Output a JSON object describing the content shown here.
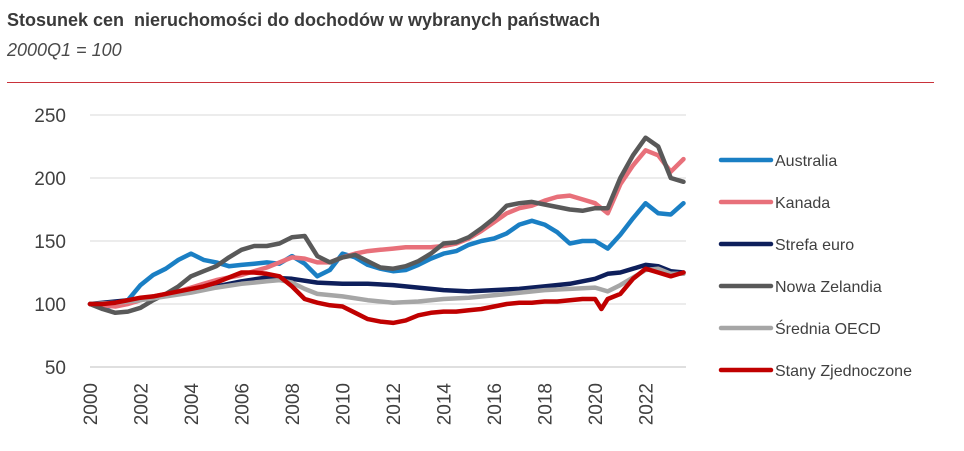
{
  "header": {
    "title": "Stosunek cen  nieruchomości do dochodów w wybranych państwach",
    "subtitle": "2000Q1 = 100"
  },
  "chart_data": {
    "type": "line",
    "title": "Stosunek cen  nieruchomości do dochodów w wybranych państwach",
    "subtitle": "2000Q1 = 100",
    "xlabel": "",
    "ylabel": "",
    "xlim": [
      2000,
      2023.6
    ],
    "ylim": [
      50,
      250
    ],
    "yticks": [
      50,
      100,
      150,
      200,
      250
    ],
    "xticks": [
      2000,
      2002,
      2004,
      2006,
      2008,
      2010,
      2012,
      2014,
      2016,
      2018,
      2020,
      2022
    ],
    "grid": "horizontal",
    "legend_position": "right",
    "series": [
      {
        "name": "Australia",
        "color": "#1a7fc4",
        "x": [
          2000,
          2000.5,
          2001,
          2001.5,
          2002,
          2002.5,
          2003,
          2003.5,
          2004,
          2004.5,
          2005,
          2005.5,
          2006,
          2006.5,
          2007,
          2007.5,
          2008,
          2008.5,
          2009,
          2009.5,
          2010,
          2010.5,
          2011,
          2011.5,
          2012,
          2012.5,
          2013,
          2013.5,
          2014,
          2014.5,
          2015,
          2015.5,
          2016,
          2016.5,
          2017,
          2017.5,
          2018,
          2018.5,
          2019,
          2019.5,
          2020,
          2020.5,
          2021,
          2021.5,
          2022,
          2022.5,
          2023,
          2023.5
        ],
        "y": [
          100,
          97,
          99,
          103,
          115,
          123,
          128,
          135,
          140,
          135,
          133,
          130,
          131,
          132,
          133,
          132,
          138,
          132,
          122,
          127,
          140,
          137,
          131,
          128,
          126,
          127,
          131,
          136,
          140,
          142,
          147,
          150,
          152,
          156,
          163,
          166,
          163,
          157,
          148,
          150,
          150,
          144,
          155,
          168,
          180,
          172,
          171,
          180
        ]
      },
      {
        "name": "Kanada",
        "color": "#e8707a",
        "x": [
          2000,
          2000.5,
          2001,
          2001.5,
          2002,
          2002.5,
          2003,
          2003.5,
          2004,
          2004.5,
          2005,
          2005.5,
          2006,
          2006.5,
          2007,
          2007.5,
          2008,
          2008.5,
          2009,
          2009.5,
          2010,
          2010.5,
          2011,
          2011.5,
          2012,
          2012.5,
          2013,
          2013.5,
          2014,
          2014.5,
          2015,
          2015.5,
          2016,
          2016.5,
          2017,
          2017.5,
          2018,
          2018.5,
          2019,
          2019.5,
          2020,
          2020.5,
          2021,
          2021.5,
          2022,
          2022.5,
          2023,
          2023.5
        ],
        "y": [
          100,
          99,
          98,
          100,
          103,
          106,
          108,
          110,
          113,
          116,
          119,
          121,
          123,
          126,
          129,
          133,
          137,
          136,
          133,
          133,
          137,
          140,
          142,
          143,
          144,
          145,
          145,
          145,
          146,
          148,
          152,
          158,
          165,
          172,
          176,
          178,
          182,
          185,
          186,
          183,
          180,
          172,
          195,
          210,
          222,
          218,
          205,
          215
        ]
      },
      {
        "name": "Strefa euro",
        "color": "#0e1f5b",
        "x": [
          2000,
          2001,
          2002,
          2003,
          2004,
          2005,
          2006,
          2007,
          2008,
          2009,
          2010,
          2011,
          2012,
          2013,
          2014,
          2015,
          2016,
          2017,
          2018,
          2019,
          2020,
          2020.5,
          2021,
          2021.5,
          2022,
          2022.5,
          2023,
          2023.5
        ],
        "y": [
          100,
          102,
          104,
          107,
          110,
          114,
          118,
          121,
          120,
          117,
          116,
          116,
          115,
          113,
          111,
          110,
          111,
          112,
          114,
          116,
          120,
          124,
          125,
          128,
          131,
          130,
          126,
          125
        ]
      },
      {
        "name": "Nowa Zelandia",
        "color": "#595959",
        "x": [
          2000,
          2000.5,
          2001,
          2001.5,
          2002,
          2002.5,
          2003,
          2003.5,
          2004,
          2004.5,
          2005,
          2005.5,
          2006,
          2006.5,
          2007,
          2007.5,
          2008,
          2008.5,
          2009,
          2009.5,
          2010,
          2010.5,
          2011,
          2011.5,
          2012,
          2012.5,
          2013,
          2013.5,
          2014,
          2014.5,
          2015,
          2015.5,
          2016,
          2016.5,
          2017,
          2017.5,
          2018,
          2018.5,
          2019,
          2019.5,
          2020,
          2020.5,
          2021,
          2021.5,
          2022,
          2022.5,
          2023,
          2023.5
        ],
        "y": [
          100,
          96,
          93,
          94,
          97,
          103,
          108,
          114,
          122,
          126,
          130,
          137,
          143,
          146,
          146,
          148,
          153,
          154,
          138,
          133,
          137,
          139,
          134,
          129,
          128,
          130,
          134,
          140,
          148,
          149,
          153,
          160,
          168,
          178,
          180,
          181,
          179,
          177,
          175,
          174,
          176,
          176,
          200,
          218,
          232,
          225,
          200,
          197
        ]
      },
      {
        "name": "Średnia OECD",
        "color": "#a6a6a6",
        "x": [
          2000,
          2001,
          2002,
          2003,
          2004,
          2005,
          2006,
          2007,
          2007.5,
          2008,
          2008.5,
          2009,
          2010,
          2011,
          2012,
          2013,
          2014,
          2015,
          2016,
          2017,
          2018,
          2019,
          2020,
          2020.5,
          2021,
          2021.5,
          2022,
          2022.5,
          2023,
          2023.5
        ],
        "y": [
          100,
          101,
          103,
          106,
          109,
          113,
          116,
          118,
          119,
          117,
          112,
          108,
          106,
          103,
          101,
          102,
          104,
          105,
          107,
          109,
          111,
          112,
          113,
          110,
          115,
          121,
          127,
          128,
          124,
          124
        ]
      },
      {
        "name": "Stany Zjednoczone",
        "color": "#c00000",
        "x": [
          2000,
          2000.5,
          2001,
          2001.5,
          2002,
          2002.5,
          2003,
          2003.5,
          2004,
          2004.5,
          2005,
          2005.5,
          2006,
          2006.5,
          2007,
          2007.5,
          2008,
          2008.5,
          2009,
          2009.5,
          2010,
          2010.5,
          2011,
          2011.5,
          2012,
          2012.5,
          2013,
          2013.5,
          2014,
          2014.5,
          2015,
          2015.5,
          2016,
          2016.5,
          2017,
          2017.5,
          2018,
          2018.5,
          2019,
          2019.5,
          2020,
          2020.25,
          2020.5,
          2021,
          2021.5,
          2022,
          2022.5,
          2023,
          2023.5
        ],
        "y": [
          100,
          100,
          101,
          103,
          105,
          106,
          108,
          110,
          112,
          114,
          117,
          121,
          125,
          125,
          124,
          122,
          114,
          104,
          101,
          99,
          98,
          93,
          88,
          86,
          85,
          87,
          91,
          93,
          94,
          94,
          95,
          96,
          98,
          100,
          101,
          101,
          102,
          102,
          103,
          104,
          104,
          96,
          104,
          108,
          120,
          128,
          125,
          122,
          125
        ]
      }
    ]
  }
}
